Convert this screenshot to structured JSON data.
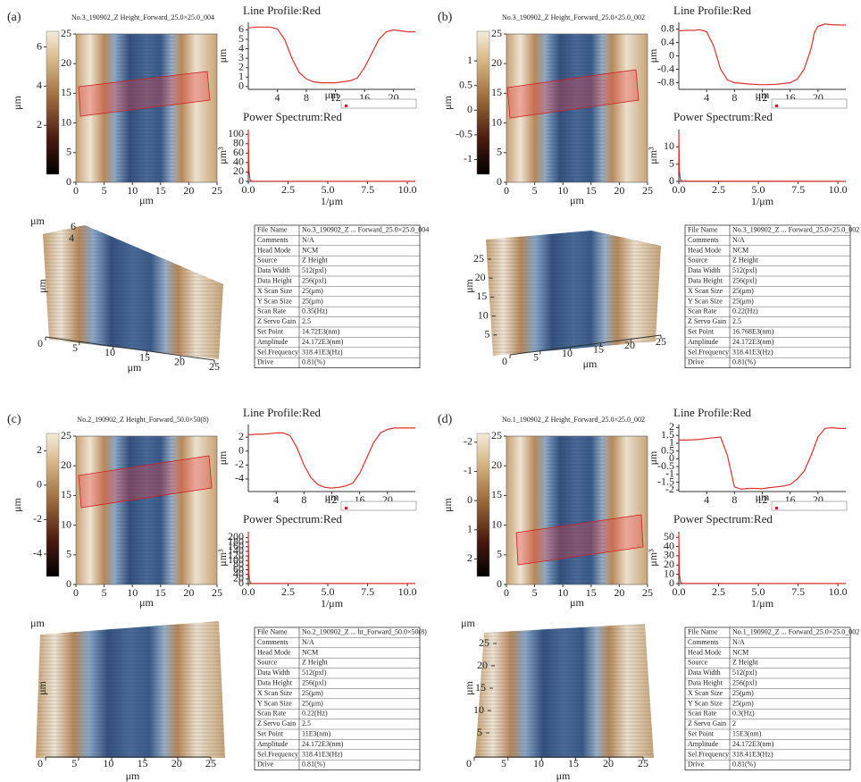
{
  "panels": [
    {
      "label": "(a)",
      "image": {
        "title": "No.3_190902_Z Height_Forward_25.0×25.0_004",
        "xlabel": "μm",
        "xlim": [
          0,
          25
        ],
        "ylim": [
          0,
          25
        ],
        "xticks": [
          0,
          5,
          10,
          15,
          20,
          25
        ],
        "yticks": [
          0,
          5,
          10,
          15,
          20,
          25
        ],
        "colorbar": {
          "label": "μm",
          "lim": [
            -0.5,
            6.8
          ],
          "ticks": [
            6,
            4,
            2
          ]
        }
      },
      "profile": {
        "title": "Line Profile:Red",
        "xlabel": "μm",
        "ylabel": "μm",
        "color": "#e03030",
        "xlim": [
          0,
          23
        ],
        "ylim": [
          -0.3,
          6.8
        ],
        "xticks": [
          4,
          8,
          12,
          16,
          20
        ],
        "yticks": [
          0,
          1,
          2,
          3,
          4,
          5,
          6
        ],
        "x": [
          0,
          1,
          2,
          3,
          4,
          5,
          6,
          7,
          8,
          9,
          10,
          11,
          12,
          13,
          14,
          15,
          16,
          17,
          18,
          19,
          20,
          21,
          22,
          23
        ],
        "y": [
          6.2,
          6.3,
          6.3,
          6.3,
          6.1,
          5.0,
          3.0,
          1.5,
          0.8,
          0.5,
          0.4,
          0.4,
          0.4,
          0.5,
          0.6,
          0.9,
          2.0,
          3.5,
          5.0,
          5.8,
          6.0,
          5.9,
          5.8,
          5.8
        ]
      },
      "spectrum": {
        "title": "Power Spectrum:Red",
        "xlabel": "1/μm",
        "ylabel": "μm³",
        "color": "#e03030",
        "xlim": [
          0,
          10.5
        ],
        "ylim": [
          0,
          110
        ],
        "xticks": [
          {
            "value": 0,
            "label": "0.0"
          },
          {
            "value": 2.5,
            "label": "2.5"
          },
          {
            "value": 5,
            "label": "5.0"
          },
          {
            "value": 7.5,
            "label": "7.5"
          },
          {
            "value": 10,
            "label": "10.0"
          }
        ],
        "yticks": [
          0,
          20,
          40,
          60,
          80,
          100
        ],
        "x": [
          0,
          0.04,
          0.1,
          0.2,
          10.5
        ],
        "y": [
          108,
          25,
          4,
          0.5,
          0.2
        ]
      },
      "view3d": {
        "xlabel": "μm",
        "ylabel": "μm",
        "zlabel": "μm",
        "xlim": [
          0,
          25
        ],
        "xticks": [
          0,
          5,
          10,
          15,
          20,
          25
        ],
        "zticks": [
          6,
          4
        ]
      },
      "info": [
        [
          "File Name",
          "No.3_190902_Z ... Forward_25.0×25.0_004"
        ],
        [
          "Comments",
          "N/A"
        ],
        [
          "Head Mode",
          "NCM"
        ],
        [
          "Source",
          "Z Height"
        ],
        [
          "Data Width",
          "512(pxl)"
        ],
        [
          "Data Height",
          "256(pxl)"
        ],
        [
          "X Scan Size",
          "25(μm)"
        ],
        [
          "Y Scan Size",
          "25(μm)"
        ],
        [
          "Scan Rate",
          "0.35(Hz)"
        ],
        [
          "Z Servo Gain",
          "2.5"
        ],
        [
          "Set Point",
          "14.72E3(nm)"
        ],
        [
          "Amplitude",
          "24.172E3(nm)"
        ],
        [
          "Sel.Frequency",
          "318.41E3(Hz)"
        ],
        [
          "Drive",
          "0.81(%)"
        ]
      ]
    },
    {
      "label": "(b)",
      "image": {
        "title": "No.3_190902_Z Height_Forward_25.0×25.0_002",
        "xlabel": "μm",
        "xlim": [
          0,
          25
        ],
        "ylim": [
          0,
          25
        ],
        "xticks": [
          0,
          5,
          10,
          15,
          20,
          25
        ],
        "yticks": [
          0,
          5,
          10,
          15,
          20,
          25
        ],
        "colorbar": {
          "label": "μm",
          "lim": [
            -1.3,
            1.6
          ],
          "ticks": [
            1,
            0.5,
            0,
            -0.5,
            -1
          ]
        }
      },
      "profile": {
        "title": "Line Profile:Red",
        "xlabel": "μm",
        "ylabel": "μm",
        "color": "#e03030",
        "xlim": [
          0,
          24
        ],
        "ylim": [
          -1,
          1
        ],
        "xticks": [
          4,
          8,
          12,
          16,
          20
        ],
        "yticks": [
          -0.8,
          -0.4,
          0,
          0.4,
          0.8
        ],
        "x": [
          0,
          1,
          2,
          3,
          4,
          5,
          6,
          7,
          8,
          10,
          12,
          14,
          16,
          17,
          18,
          19,
          19.5,
          20,
          21,
          22,
          23,
          24
        ],
        "y": [
          0.75,
          0.76,
          0.76,
          0.78,
          0.72,
          0.3,
          -0.4,
          -0.72,
          -0.8,
          -0.84,
          -0.86,
          -0.85,
          -0.8,
          -0.7,
          -0.4,
          0.2,
          0.7,
          0.88,
          0.95,
          0.93,
          0.92,
          0.92
        ]
      },
      "spectrum": {
        "title": "Power Spectrum:Red",
        "xlabel": "1/μm",
        "ylabel": "μm³",
        "color": "#e03030",
        "xlim": [
          0,
          10.5
        ],
        "ylim": [
          0,
          15
        ],
        "xticks": [
          {
            "value": 0,
            "label": "0.0"
          },
          {
            "value": 2.5,
            "label": "2.5"
          },
          {
            "value": 5,
            "label": "5.0"
          },
          {
            "value": 7.5,
            "label": "7.5"
          },
          {
            "value": 10,
            "label": "10.0"
          }
        ],
        "yticks": [
          0,
          5,
          10
        ],
        "x": [
          0,
          0.04,
          0.1,
          0.2,
          10.5
        ],
        "y": [
          14,
          3,
          0.5,
          0.1,
          0.05
        ]
      },
      "view3d": {
        "xlabel": "μm",
        "ylabel": "μm",
        "xlim": [
          0,
          25
        ],
        "xticks": [
          0,
          5,
          10,
          15,
          20,
          25
        ],
        "ylim": [
          0,
          25
        ],
        "yticks": [
          5,
          10,
          15,
          20,
          25
        ]
      },
      "info": [
        [
          "File Name",
          "No.3_190902_Z ... Forward_25.0×25.0_002"
        ],
        [
          "Comments",
          "N/A"
        ],
        [
          "Head Mode",
          "NCM"
        ],
        [
          "Source",
          "Z Height"
        ],
        [
          "Data Width",
          "512(pxl)"
        ],
        [
          "Data Height",
          "256(pxl)"
        ],
        [
          "X Scan Size",
          "25(μm)"
        ],
        [
          "Y Scan Size",
          "25(μm)"
        ],
        [
          "Scan Rate",
          "0.22(Hz)"
        ],
        [
          "Z Servo Gain",
          "2.5"
        ],
        [
          "Set Point",
          "16.768E3(nm)"
        ],
        [
          "Amplitude",
          "24.172E3(nm)"
        ],
        [
          "Sel.Frequency",
          "318.41E3(Hz)"
        ],
        [
          "Drive",
          "0.81(%)"
        ]
      ]
    },
    {
      "label": "(c)",
      "image": {
        "title": "No.2_190902_Z Height_Forward_50.0×50(8)",
        "xlabel": "μm",
        "xlim": [
          0,
          25
        ],
        "ylim": [
          0,
          25
        ],
        "xticks": [
          0,
          5,
          10,
          15,
          20,
          25
        ],
        "yticks": [
          0,
          5,
          10,
          15,
          20,
          25
        ],
        "colorbar": {
          "label": "μm",
          "lim": [
            -5.3,
            3.0
          ],
          "ticks": [
            2,
            0,
            -2,
            -4
          ]
        }
      },
      "profile": {
        "title": "Line Profile:Red",
        "xlabel": "μm",
        "ylabel": "μm",
        "color": "#e03030",
        "xlim": [
          0,
          24
        ],
        "ylim": [
          -5.8,
          3.8
        ],
        "xticks": [
          4,
          8,
          12,
          16,
          20
        ],
        "yticks": [
          -4,
          -2,
          0,
          2
        ],
        "x": [
          0,
          1,
          2,
          3,
          4,
          5,
          6,
          7,
          8,
          9,
          10,
          11,
          12,
          13,
          14,
          15,
          16,
          17,
          18,
          19,
          20,
          21,
          22,
          23,
          24
        ],
        "y": [
          2.3,
          2.4,
          2.4,
          2.5,
          2.6,
          2.6,
          2.2,
          0.5,
          -2.0,
          -3.8,
          -4.8,
          -5.2,
          -5.3,
          -5.2,
          -5.0,
          -4.6,
          -3.2,
          -1.0,
          1.2,
          2.6,
          3.1,
          3.3,
          3.3,
          3.3,
          3.3
        ]
      },
      "spectrum": {
        "title": "Power Spectrum:Red",
        "xlabel": "1/μm",
        "ylabel": "μm³",
        "color": "#e03030",
        "xlim": [
          0,
          10.5
        ],
        "ylim": [
          0,
          225
        ],
        "xticks": [
          {
            "value": 0,
            "label": "0.0"
          },
          {
            "value": 2.5,
            "label": "2.5"
          },
          {
            "value": 5,
            "label": "5.0"
          },
          {
            "value": 7.5,
            "label": "7.5"
          },
          {
            "value": 10,
            "label": "10.0"
          }
        ],
        "yticks": [
          0,
          20,
          40,
          60,
          80,
          100,
          120,
          140,
          160,
          180,
          200
        ],
        "x": [
          0,
          0.04,
          0.1,
          0.2,
          10.5
        ],
        "y": [
          220,
          40,
          6,
          1,
          0.3
        ]
      },
      "view3d": {
        "xlabel": "μm",
        "ylabel": "μm",
        "zlabel": "μm",
        "xlim": [
          0,
          25
        ],
        "xticks": [
          0,
          5,
          10,
          15,
          20,
          25
        ]
      },
      "info": [
        [
          "File Name",
          "No.2_190902_Z ... ht_Forward_50.0×50(8)"
        ],
        [
          "Comments",
          "N/A"
        ],
        [
          "Head Mode",
          "NCM"
        ],
        [
          "Source",
          "Z Height"
        ],
        [
          "Data Width",
          "512(pxl)"
        ],
        [
          "Data Height",
          "256(pxl)"
        ],
        [
          "X Scan Size",
          "25(μm)"
        ],
        [
          "Y Scan Size",
          "25(μm)"
        ],
        [
          "Scan Rate",
          "0.22(Hz)"
        ],
        [
          "Z Servo Gain",
          "2.5"
        ],
        [
          "Set Point",
          "11E3(nm)"
        ],
        [
          "Amplitude",
          "24.172E3(nm)"
        ],
        [
          "Sel.Frequency",
          "318.41E3(Hz)"
        ],
        [
          "Drive",
          "0.81(%)"
        ]
      ]
    },
    {
      "label": "(d)",
      "image": {
        "title": "No.1_190902_Z Height_Forward_25.0×25.0_002",
        "xlabel": "μm",
        "xlim": [
          0,
          25
        ],
        "ylim": [
          0,
          25
        ],
        "xticks": [
          0,
          5,
          10,
          15,
          20,
          25
        ],
        "yticks": [
          0,
          5,
          10,
          15,
          20,
          25
        ],
        "colorbar": {
          "label": "μm",
          "lim": [
            2.6,
            -2.3
          ],
          "ticks": [
            -2,
            -1,
            0,
            1,
            2
          ]
        }
      },
      "profile": {
        "title": "Line Profile:Red",
        "xlabel": "μm",
        "ylabel": "μm",
        "color": "#e03030",
        "xlim": [
          0,
          24
        ],
        "ylim": [
          -2.1,
          2.2
        ],
        "xticks": [
          4,
          8,
          12,
          16,
          20
        ],
        "yticks": [
          -2,
          -1.5,
          -1,
          -0.5,
          0,
          0.5,
          1,
          1.5,
          2
        ],
        "x": [
          0,
          1,
          2,
          3,
          4,
          5,
          6,
          7,
          8,
          9,
          10,
          11,
          12,
          13,
          14,
          15,
          16,
          17,
          18,
          19,
          20,
          21,
          22,
          23,
          24
        ],
        "y": [
          1.2,
          1.2,
          1.22,
          1.25,
          1.3,
          1.35,
          1.4,
          0.2,
          -1.8,
          -1.95,
          -1.9,
          -1.9,
          -1.92,
          -1.85,
          -1.8,
          -1.75,
          -1.65,
          -1.3,
          -0.8,
          0.2,
          1.4,
          1.95,
          2.0,
          1.95,
          1.95
        ]
      },
      "spectrum": {
        "title": "Power Spectrum:Red",
        "xlabel": "1/μm",
        "ylabel": "μm³",
        "color": "#e03030",
        "xlim": [
          0,
          10.5
        ],
        "ylim": [
          0,
          56
        ],
        "xticks": [
          {
            "value": 0,
            "label": "0.0"
          },
          {
            "value": 2.5,
            "label": "2.5"
          },
          {
            "value": 5,
            "label": "5.0"
          },
          {
            "value": 7.5,
            "label": "7.5"
          },
          {
            "value": 10,
            "label": "10.0"
          }
        ],
        "yticks": [
          0,
          10,
          20,
          30,
          40,
          50
        ],
        "x": [
          0,
          0.04,
          0.1,
          0.2,
          10.5
        ],
        "y": [
          54,
          10,
          2,
          0.3,
          0.1
        ]
      },
      "view3d": {
        "xlabel": "μm",
        "ylabel": "μm",
        "zlabel": "μm",
        "xlim": [
          0,
          25
        ],
        "xticks": [
          0,
          5,
          10,
          15,
          20,
          25
        ],
        "ylim": [
          0,
          25
        ],
        "yticks": [
          5,
          10,
          15,
          20,
          25
        ]
      },
      "info": [
        [
          "File Name",
          "No.1_190902_Z ... Forward_25.0×25.0_002"
        ],
        [
          "Comments",
          "N/A"
        ],
        [
          "Head Mode",
          "NCM"
        ],
        [
          "Source",
          "Z Height"
        ],
        [
          "Data Width",
          "512(pxl)"
        ],
        [
          "Data Height",
          "256(pxl)"
        ],
        [
          "X Scan Size",
          "25(μm)"
        ],
        [
          "Y Scan Size",
          "25(μm)"
        ],
        [
          "Scan Rate",
          "0.3(Hz)"
        ],
        [
          "Z Servo Gain",
          "2"
        ],
        [
          "Set Point",
          "15E3(nm)"
        ],
        [
          "Amplitude",
          "24.172E3(nm)"
        ],
        [
          "Sel.Frequency",
          "318.41E3(Hz)"
        ],
        [
          "Drive",
          "0.81(%)"
        ]
      ]
    }
  ]
}
